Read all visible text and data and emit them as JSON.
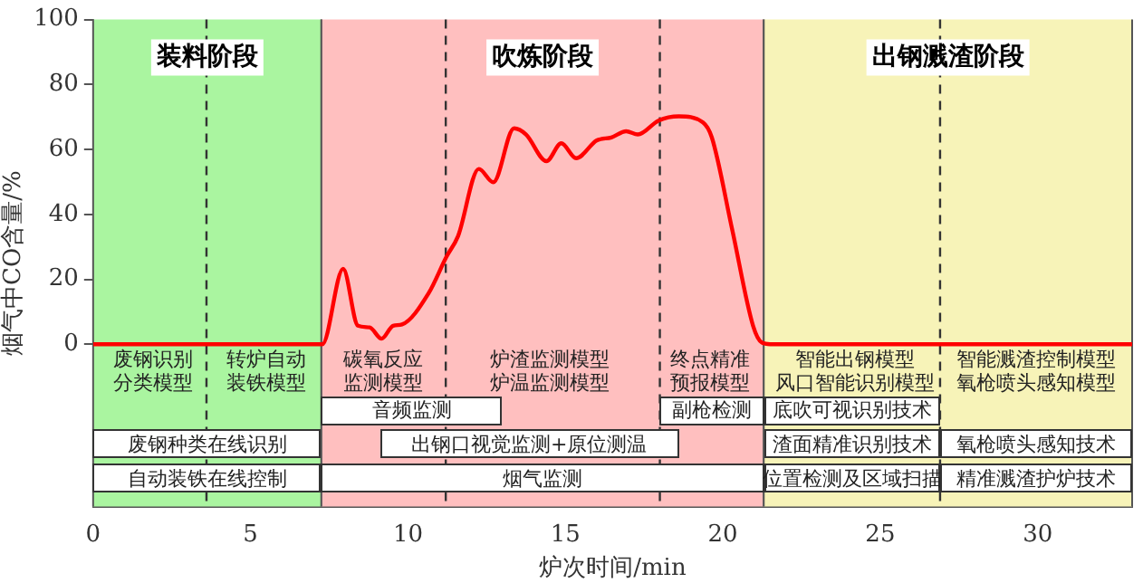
{
  "chart_data": {
    "type": "line",
    "xlabel": "炉次时间/min",
    "ylabel": "烟气中CO含量/%",
    "xlim": [
      0,
      33
    ],
    "ylim": [
      -50,
      100
    ],
    "xticks": [
      0,
      5,
      10,
      15,
      20,
      25,
      30
    ],
    "yticks": [
      0,
      20,
      40,
      60,
      80,
      100
    ],
    "grid": false,
    "legend": false,
    "marker": "none",
    "line_style": "solid",
    "series": [
      {
        "color": "#ff0000",
        "x": [
          0,
          6.07,
          7.28,
          7.94,
          8.41,
          8.78,
          9.16,
          9.53,
          9.81,
          10.66,
          11.22,
          11.59,
          12.25,
          12.71,
          13.37,
          13.75,
          14.4,
          14.87,
          15.34,
          16.0,
          16.46,
          16.93,
          17.3,
          17.96,
          18.6,
          19.37,
          19.65,
          20.3,
          20.96,
          21.24,
          21.5,
          33
        ],
        "values": [
          0,
          0,
          0,
          23.2,
          5.7,
          5.2,
          1.7,
          5.7,
          6.1,
          15.8,
          26.9,
          33.3,
          54,
          49.9,
          66.5,
          64.6,
          56.4,
          61.9,
          57.3,
          62.8,
          63.7,
          65.6,
          64.6,
          68.9,
          70.2,
          68.3,
          63.7,
          35.2,
          5.7,
          0.5,
          0,
          0
        ]
      }
    ],
    "bands": [
      {
        "axis": "x",
        "from": 0,
        "to": 7.25,
        "label": "装料阶段",
        "color": "#aaf5a0"
      },
      {
        "axis": "x",
        "from": 7.25,
        "to": 21.3,
        "label": "吹炼阶段",
        "color": "#ffbfbf"
      },
      {
        "axis": "x",
        "from": 21.3,
        "to": 33,
        "label": "出钢溅渣阶段",
        "color": "#f7f3b8"
      }
    ],
    "ref_lines": [
      {
        "axis": "x",
        "value": 3.6,
        "line_style": "dashed",
        "color": "#333333"
      },
      {
        "axis": "x",
        "value": 11.2,
        "line_style": "dashed",
        "color": "#333333"
      },
      {
        "axis": "x",
        "value": 18.0,
        "line_style": "dashed",
        "color": "#333333"
      },
      {
        "axis": "x",
        "value": 26.9,
        "line_style": "dashed",
        "color": "#333333"
      }
    ],
    "annotations": [
      "废钢识别分类模型",
      "转炉自动装铁模型",
      "碳氧反应监测模型",
      "炉渣监测模型炉温监测模型",
      "终点精准预报模型",
      "智能出钢模型风口智能识别模型",
      "智能溅渣控制模型氧枪喷头感知模型",
      "音频监测",
      "副枪检测",
      "底吹可视识别技术",
      "废钢种类在线识别",
      "出钢口视觉监测+原位测温",
      "渣面精准识别技术",
      "氧枪喷头感知技术",
      "自动装铁在线控制",
      "烟气监测",
      "位置检测及区域扫描",
      "精准溅渣护炉技术"
    ]
  }
}
